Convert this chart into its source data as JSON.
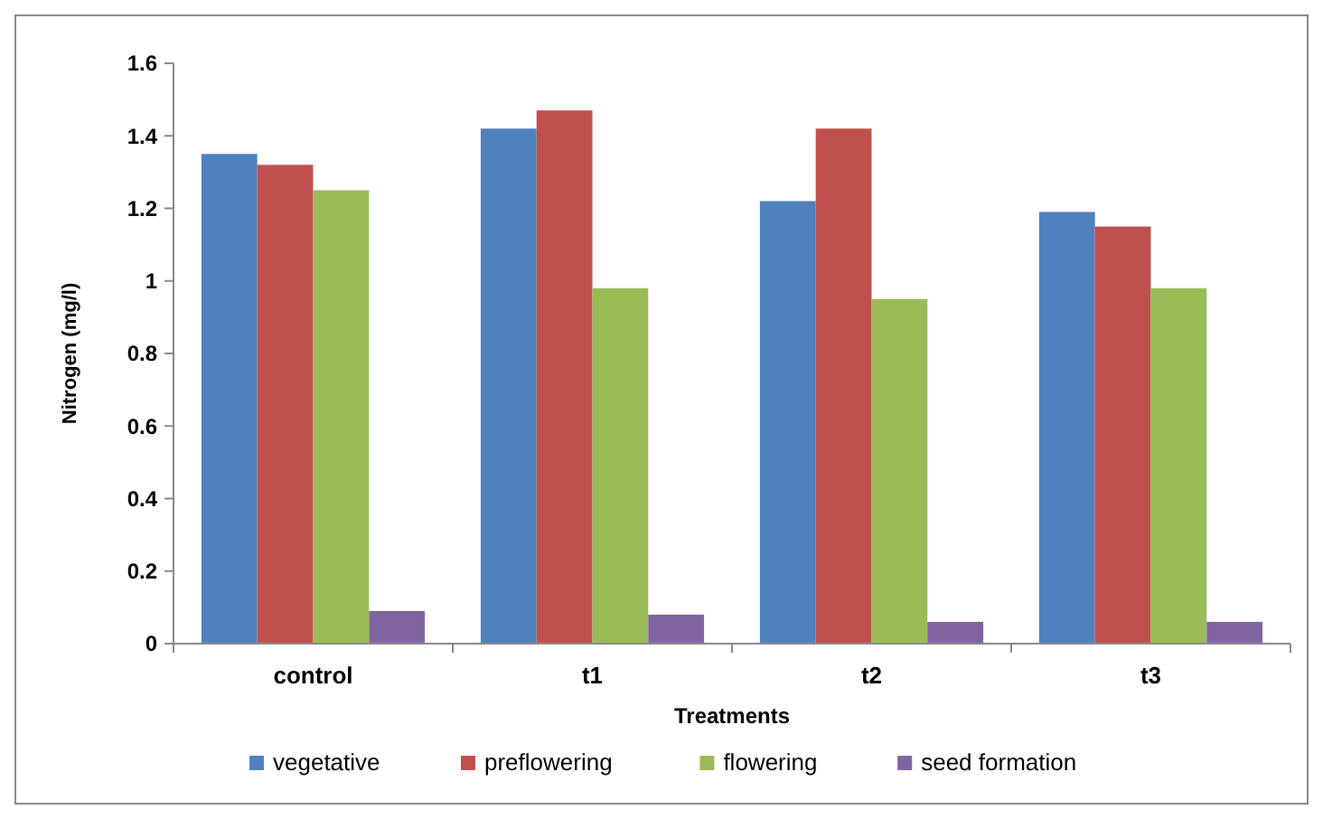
{
  "chart_data": {
    "type": "bar",
    "xlabel": "Treatments",
    "ylabel": "Nitrogen (mg/l)",
    "categories": [
      "control",
      "t1",
      "t2",
      "t3"
    ],
    "series": [
      {
        "name": "vegetative",
        "color": "#4f81bd",
        "values": [
          1.35,
          1.42,
          1.22,
          1.19
        ]
      },
      {
        "name": "preflowering",
        "color": "#c0504d",
        "values": [
          1.32,
          1.47,
          1.42,
          1.15
        ]
      },
      {
        "name": "flowering",
        "color": "#9bbb59",
        "values": [
          1.25,
          0.98,
          0.95,
          0.98
        ]
      },
      {
        "name": "seed formation",
        "color": "#8064a2",
        "values": [
          0.09,
          0.08,
          0.06,
          0.06
        ]
      }
    ],
    "ylim": [
      0,
      1.6
    ],
    "yticks": [
      0,
      {
        "value": 0.2,
        "label": "0.2"
      },
      {
        "value": 0.4,
        "label": "0.4"
      },
      {
        "value": 0.6,
        "label": "0.6"
      },
      {
        "value": 0.8,
        "label": "0.8"
      },
      1,
      {
        "value": 1.2,
        "label": "1.2"
      },
      {
        "value": 1.4,
        "label": "1.4"
      },
      {
        "value": 1.6,
        "label": "1.6"
      }
    ],
    "grid": false,
    "legend": "bottom"
  }
}
